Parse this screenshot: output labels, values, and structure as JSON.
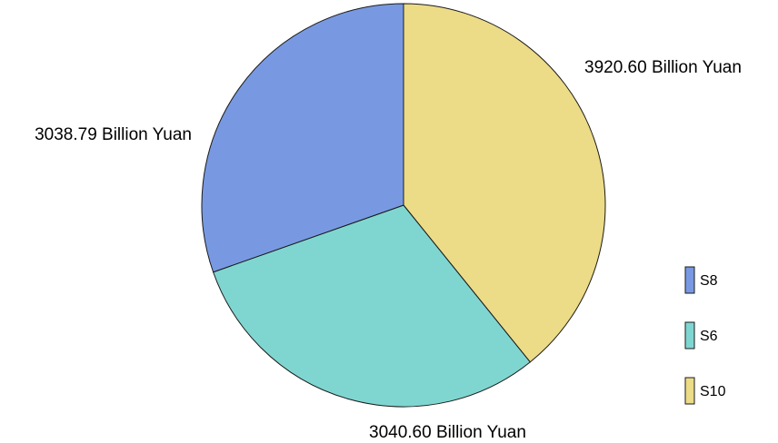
{
  "chart_data": {
    "type": "pie",
    "start_angle_deg": 0,
    "direction": "clockwise",
    "slices": [
      {
        "name": "S10",
        "value": 3920.6,
        "label": "3920.60 Billion Yuan",
        "color": "#ecdb87"
      },
      {
        "name": "S6",
        "value": 3040.6,
        "label": "3040.60 Billion Yuan",
        "color": "#7fd6d1"
      },
      {
        "name": "S8",
        "value": 3038.79,
        "label": "3038.79 Billion Yuan",
        "color": "#7899e2"
      }
    ],
    "legend": {
      "placement": "bottom-right",
      "items": [
        {
          "name": "S8",
          "color": "#7899e2"
        },
        {
          "name": "S6",
          "color": "#7fd6d1"
        },
        {
          "name": "S10",
          "color": "#ecdb87"
        }
      ]
    }
  }
}
